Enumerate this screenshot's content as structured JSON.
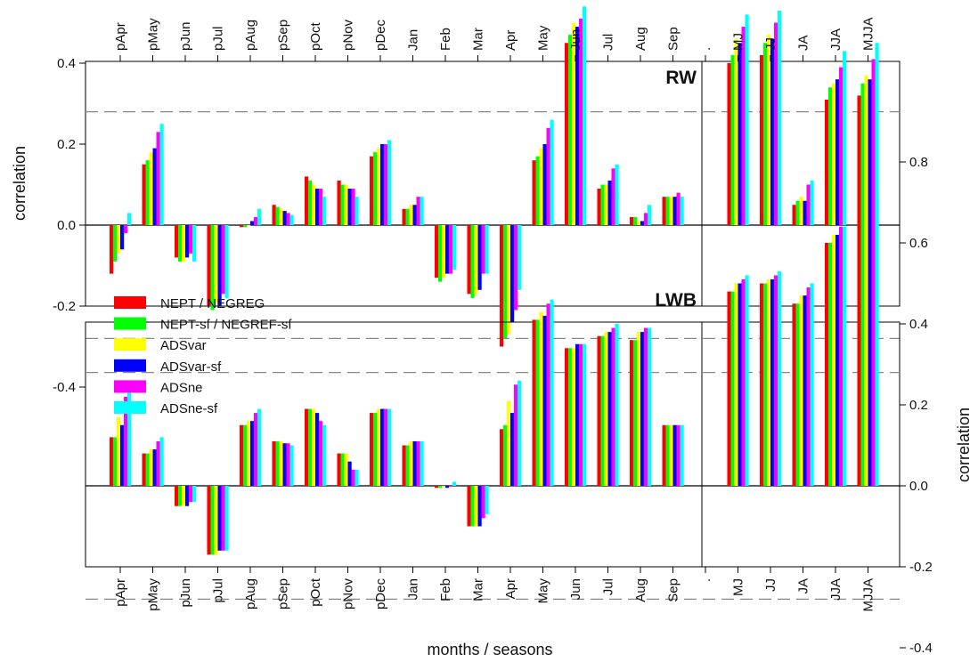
{
  "chart_data": {
    "type": "bar",
    "xlabel": "months / seasons",
    "ylabel_top": "correlation",
    "ylabel_bottom": "correlation",
    "ylim": [
      -0.4,
      0.8
    ],
    "yticks_top": [
      "-0.4",
      "-0.2",
      "0.0",
      "0.2",
      "0.4",
      "0.6",
      "0.8"
    ],
    "yticks_bottom": [
      "-0.4",
      "-0.2",
      "0.0",
      "0.2",
      "0.4",
      "0.6",
      "0.8"
    ],
    "significance_level": 0.28,
    "categories": [
      "pApr",
      "pMay",
      "pJun",
      "pJul",
      "pAug",
      "pSep",
      "pOct",
      "pNov",
      "pDec",
      "Jan",
      "Feb",
      "Mar",
      "Apr",
      "May",
      "Jun",
      "Jul",
      "Aug",
      "Sep",
      ".",
      "MJ",
      "JJ",
      "JA",
      "JJA",
      "MJJA"
    ],
    "separator_label": ".",
    "colors": [
      "#ff0000",
      "#00ff00",
      "#ffff00",
      "#0000ff",
      "#ff00ff",
      "#00ffff"
    ],
    "series_names": [
      "NEPT / NEGREG",
      "NEPT-sf / NEGREF-sf",
      "ADSvar",
      "ADSvar-sf",
      "ADSne",
      "ADSne-sf"
    ],
    "panels": [
      {
        "label": "RW",
        "series": [
          {
            "name": "NEPT / NEGREG",
            "values": [
              -0.12,
              0.15,
              -0.08,
              -0.2,
              -0.005,
              0.05,
              0.12,
              0.11,
              0.17,
              0.04,
              -0.13,
              -0.17,
              -0.3,
              0.16,
              0.45,
              0.09,
              0.02,
              0.07,
              null,
              0.4,
              0.42,
              0.05,
              0.31,
              0.32
            ]
          },
          {
            "name": "NEPT-sf / NEGREF-sf",
            "values": [
              -0.09,
              0.16,
              -0.09,
              -0.21,
              -0.005,
              0.045,
              0.11,
              0.1,
              0.18,
              0.04,
              -0.14,
              -0.18,
              -0.28,
              0.17,
              0.47,
              0.1,
              0.02,
              0.07,
              null,
              0.42,
              0.45,
              0.06,
              0.34,
              0.35
            ]
          },
          {
            "name": "ADSvar",
            "values": [
              -0.07,
              0.18,
              -0.09,
              -0.19,
              0.0,
              0.04,
              0.1,
              0.1,
              0.19,
              0.05,
              -0.13,
              -0.17,
              -0.27,
              0.19,
              0.5,
              0.1,
              0.01,
              0.07,
              null,
              0.46,
              0.47,
              0.07,
              0.35,
              0.37
            ]
          },
          {
            "name": "ADSvar-sf",
            "values": [
              -0.06,
              0.19,
              -0.08,
              -0.2,
              0.01,
              0.035,
              0.09,
              0.09,
              0.2,
              0.05,
              -0.12,
              -0.16,
              -0.24,
              0.2,
              0.49,
              0.11,
              0.01,
              0.07,
              null,
              0.45,
              0.46,
              0.06,
              0.36,
              0.36
            ]
          },
          {
            "name": "ADSne",
            "values": [
              -0.02,
              0.23,
              -0.07,
              -0.17,
              0.02,
              0.03,
              0.09,
              0.09,
              0.2,
              0.07,
              -0.12,
              -0.12,
              -0.21,
              0.24,
              0.51,
              0.14,
              0.03,
              0.08,
              null,
              0.49,
              0.5,
              0.1,
              0.39,
              0.41
            ]
          },
          {
            "name": "ADSne-sf",
            "values": [
              0.03,
              0.25,
              -0.09,
              -0.18,
              0.04,
              0.025,
              0.07,
              0.07,
              0.21,
              0.07,
              -0.11,
              -0.12,
              -0.16,
              0.26,
              0.54,
              0.15,
              0.05,
              0.07,
              null,
              0.52,
              0.53,
              0.11,
              0.43,
              0.45
            ]
          }
        ]
      },
      {
        "label": "LWB",
        "series": [
          {
            "name": "NEPT / NEGREG",
            "values": [
              0.12,
              0.08,
              -0.05,
              -0.17,
              0.15,
              0.11,
              0.19,
              0.08,
              0.18,
              0.1,
              -0.005,
              -0.1,
              0.14,
              0.41,
              0.34,
              0.37,
              0.36,
              0.15,
              null,
              0.48,
              0.5,
              0.45,
              0.6,
              0.65
            ]
          },
          {
            "name": "NEPT-sf / NEGREF-sf",
            "values": [
              0.12,
              0.08,
              -0.05,
              -0.17,
              0.15,
              0.11,
              0.19,
              0.08,
              0.18,
              0.1,
              -0.005,
              -0.1,
              0.15,
              0.41,
              0.34,
              0.37,
              0.36,
              0.15,
              null,
              0.48,
              0.5,
              0.45,
              0.6,
              0.65
            ]
          },
          {
            "name": "ADSvar",
            "values": [
              0.17,
              0.09,
              -0.05,
              -0.17,
              0.16,
              0.11,
              0.19,
              0.08,
              0.19,
              0.11,
              0.0,
              -0.1,
              0.21,
              0.43,
              0.34,
              0.38,
              0.38,
              0.15,
              null,
              0.5,
              0.51,
              0.47,
              0.62,
              0.67
            ]
          },
          {
            "name": "ADSvar-sf",
            "values": [
              0.15,
              0.09,
              -0.05,
              -0.16,
              0.16,
              0.105,
              0.18,
              0.06,
              0.19,
              0.11,
              -0.005,
              -0.1,
              0.18,
              0.42,
              0.35,
              0.38,
              0.38,
              0.15,
              null,
              0.5,
              0.51,
              0.47,
              0.62,
              0.67
            ]
          },
          {
            "name": "ADSne",
            "values": [
              0.22,
              0.11,
              -0.04,
              -0.16,
              0.18,
              0.105,
              0.16,
              0.04,
              0.19,
              0.11,
              0.0,
              -0.08,
              0.25,
              0.45,
              0.35,
              0.39,
              0.39,
              0.15,
              null,
              0.51,
              0.52,
              0.49,
              0.64,
              0.69
            ]
          },
          {
            "name": "ADSne-sf",
            "values": [
              0.23,
              0.12,
              -0.04,
              -0.16,
              0.19,
              0.1,
              0.15,
              0.04,
              0.19,
              0.11,
              0.01,
              -0.07,
              0.26,
              0.46,
              0.35,
              0.4,
              0.39,
              0.15,
              null,
              0.52,
              0.53,
              0.5,
              0.64,
              0.71
            ]
          }
        ]
      }
    ],
    "legend": {
      "position": "bottom-panel-top-left",
      "entries": [
        "NEPT / NEGREG",
        "NEPT-sf / NEGREF-sf",
        "ADSvar",
        "ADSvar-sf",
        "ADSne",
        "ADSne-sf"
      ]
    },
    "grid": false
  }
}
